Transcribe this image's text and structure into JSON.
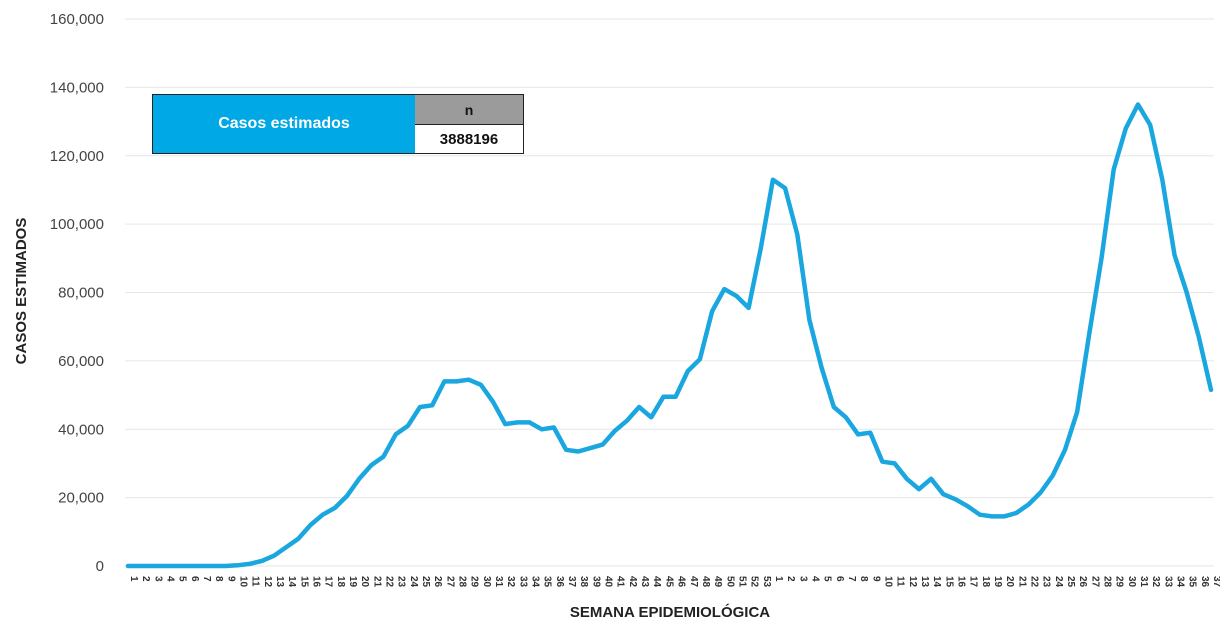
{
  "chart_data": {
    "type": "line",
    "xlabel": "SEMANA EPIDEMIOLÓGICA",
    "ylabel": "CASOS ESTIMADOS",
    "ylim": [
      0,
      160000
    ],
    "yticks": [
      "0",
      "20,000",
      "40,000",
      "60,000",
      "80,000",
      "100,000",
      "120,000",
      "140,000",
      "160,000"
    ],
    "grid": "horizontal",
    "color": "#1aa7e0",
    "x": [
      "1",
      "2",
      "3",
      "4",
      "5",
      "6",
      "7",
      "8",
      "9",
      "10",
      "11",
      "12",
      "13",
      "14",
      "15",
      "16",
      "17",
      "18",
      "19",
      "20",
      "21",
      "22",
      "23",
      "24",
      "25",
      "26",
      "27",
      "28",
      "29",
      "30",
      "31",
      "32",
      "33",
      "34",
      "35",
      "36",
      "37",
      "38",
      "39",
      "40",
      "41",
      "42",
      "43",
      "44",
      "45",
      "46",
      "47",
      "48",
      "49",
      "50",
      "51",
      "52",
      "53",
      "1",
      "2",
      "3",
      "4",
      "5",
      "6",
      "7",
      "8",
      "9",
      "10",
      "11",
      "12",
      "13",
      "14",
      "15",
      "16",
      "17",
      "18",
      "19",
      "20",
      "21",
      "22",
      "23",
      "24",
      "25",
      "26",
      "27",
      "28",
      "29",
      "30",
      "31",
      "32",
      "33",
      "34",
      "35",
      "36",
      "37"
    ],
    "series": [
      {
        "values": [
          0,
          0,
          0,
          0,
          0,
          0,
          0,
          0,
          0,
          200,
          600,
          1500,
          3000,
          5500,
          8000,
          12000,
          15000,
          17000,
          20500,
          25500,
          29500,
          32000,
          38500,
          41000,
          46500,
          47000,
          54000,
          54000,
          54500,
          53000,
          48000,
          41500,
          42000,
          42000,
          40000,
          40500,
          34000,
          33500,
          34500,
          35500,
          39500,
          42500,
          46500,
          43500,
          49500,
          49500,
          57000,
          60500,
          74500,
          81000,
          79000,
          75500,
          93000,
          113000,
          110500,
          97000,
          72000,
          58000,
          46500,
          43500,
          38500,
          39000,
          30500,
          30000,
          25500,
          22500,
          25500,
          21000,
          19500,
          17500,
          15000,
          14500,
          14500,
          15500,
          18000,
          21500,
          26500,
          34000,
          45000,
          68000,
          90000,
          116000,
          128000,
          135000,
          129000,
          113000,
          91000,
          80000,
          67000,
          51500
        ]
      }
    ]
  },
  "stats_table": {
    "label": "Casos estimados",
    "header": "n",
    "value": "3888196"
  }
}
